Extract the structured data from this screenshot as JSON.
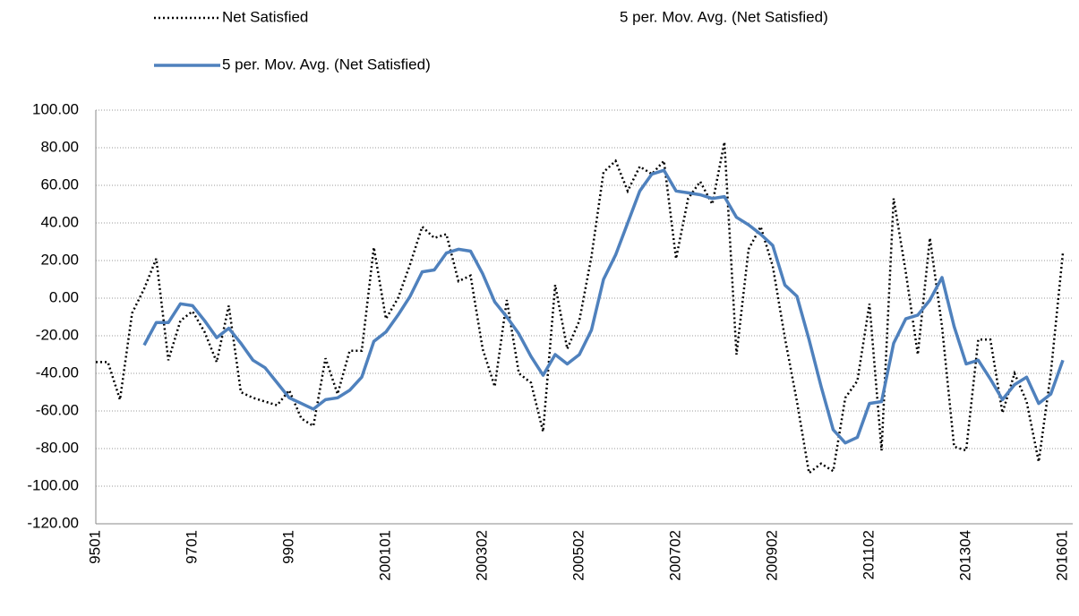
{
  "chart_data": {
    "type": "line",
    "categories": [
      "9501",
      null,
      null,
      null,
      null,
      null,
      null,
      null,
      "9701",
      null,
      null,
      null,
      null,
      null,
      null,
      null,
      "9901",
      null,
      null,
      null,
      null,
      null,
      null,
      null,
      "200101",
      null,
      null,
      null,
      null,
      null,
      null,
      null,
      "200302",
      null,
      null,
      null,
      null,
      null,
      null,
      null,
      "200502",
      null,
      null,
      null,
      null,
      null,
      null,
      null,
      "200702",
      null,
      null,
      null,
      null,
      null,
      null,
      null,
      "200902",
      null,
      null,
      null,
      null,
      null,
      null,
      null,
      "201102",
      null,
      null,
      null,
      null,
      null,
      null,
      null,
      "201304",
      null,
      null,
      null,
      null,
      null,
      null,
      null,
      "201601"
    ],
    "series": [
      {
        "name": "Net Satisfied",
        "color": "#000000",
        "style": "dotted",
        "values": [
          -34,
          -34,
          -54,
          -8,
          5,
          21,
          -33,
          -12,
          -7,
          -18,
          -34,
          -4,
          -50,
          -53,
          -55,
          -57,
          -49,
          -64,
          -68,
          -32,
          -51,
          -28,
          -28,
          27,
          -11,
          0,
          18,
          38,
          32,
          34,
          9,
          12,
          -27,
          -47,
          -1,
          -40,
          -45,
          -71,
          7,
          -27,
          -12,
          22,
          67,
          73,
          57,
          70,
          66,
          73,
          21,
          53,
          62,
          50,
          83,
          -30,
          26,
          38,
          17,
          -21,
          -55,
          -93,
          -88,
          -92,
          -53,
          -44,
          -3,
          -81,
          53,
          14,
          -30,
          32,
          -15,
          -79,
          -81,
          -22,
          -22,
          -61,
          -40,
          -55,
          -87,
          -40,
          24
        ]
      },
      {
        "name": "5 per. Mov. Avg. (Net Satisfied)",
        "color": "#4f81bd",
        "style": "solid",
        "values": [
          null,
          null,
          null,
          null,
          -25,
          -13,
          -13,
          -3,
          -4,
          -12,
          -21,
          -16,
          -24,
          -33,
          -37,
          -45,
          -53,
          -56,
          -59,
          -54,
          -53,
          -49,
          -42,
          -23,
          -18,
          -9,
          1,
          14,
          15,
          24,
          26,
          25,
          13,
          -2,
          -10,
          -19,
          -31,
          -41,
          -30,
          -35,
          -30,
          -17,
          10,
          23,
          40,
          57,
          66,
          68,
          57,
          56,
          55,
          53,
          54,
          43,
          39,
          34,
          28,
          7,
          1,
          -22,
          -47,
          -70,
          -77,
          -74,
          -56,
          -55,
          -24,
          -11,
          -9,
          -1,
          11,
          -15,
          -35,
          -33,
          -43,
          -54,
          -46,
          -42,
          -56,
          -51,
          -33
        ]
      },
      {
        "name": "5 per. Mov. Avg. (Net Satisfied)",
        "color": "none",
        "style": "none",
        "values": [
          null,
          null,
          null,
          null,
          null,
          null,
          null,
          null,
          null,
          null,
          null,
          null,
          null,
          null,
          null,
          null,
          null,
          null,
          null,
          null,
          null,
          null,
          null,
          null,
          null,
          null,
          null,
          null,
          null,
          null,
          null,
          null,
          null,
          null,
          null,
          null,
          null,
          null,
          null,
          null,
          null,
          null,
          null,
          null,
          null,
          null,
          null,
          null,
          null,
          null,
          null,
          null,
          null,
          null,
          null,
          null,
          null,
          null,
          null,
          null,
          null,
          null,
          null,
          null,
          null,
          null,
          null,
          null,
          null,
          null,
          null,
          null,
          null,
          null,
          null,
          null,
          null,
          null,
          null,
          null,
          null
        ]
      }
    ],
    "ylim": [
      -120,
      100
    ],
    "yticks": [
      {
        "value": -120,
        "label": "-120.00"
      },
      {
        "value": -100,
        "label": "-100.00"
      },
      {
        "value": -80,
        "label": "-80.00"
      },
      {
        "value": -60,
        "label": "-60.00"
      },
      {
        "value": -40,
        "label": "-40.00"
      },
      {
        "value": -20,
        "label": "-20.00"
      },
      {
        "value": 0,
        "label": "0.00"
      },
      {
        "value": 20,
        "label": "20.00"
      },
      {
        "value": 40,
        "label": "40.00"
      },
      {
        "value": 60,
        "label": "60.00"
      },
      {
        "value": 80,
        "label": "80.00"
      },
      {
        "value": 100,
        "label": "100.00"
      }
    ],
    "grid": true,
    "legend": "top"
  }
}
